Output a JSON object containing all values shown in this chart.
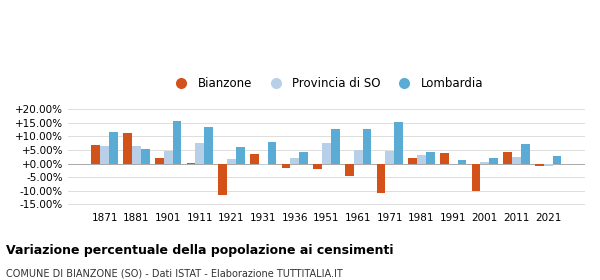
{
  "years": [
    1871,
    1881,
    1901,
    1911,
    1921,
    1931,
    1936,
    1951,
    1961,
    1971,
    1981,
    1991,
    2001,
    2011,
    2021
  ],
  "bianzone": [
    7.0,
    11.2,
    2.2,
    0.3,
    -11.5,
    3.5,
    -1.5,
    -2.0,
    -4.5,
    -11.0,
    2.0,
    4.0,
    -10.0,
    4.3,
    -1.0
  ],
  "provincia_so": [
    6.5,
    6.3,
    4.5,
    7.5,
    1.5,
    -0.5,
    2.0,
    7.5,
    5.0,
    4.5,
    3.0,
    0.0,
    0.5,
    2.5,
    -1.0
  ],
  "lombardia": [
    11.5,
    5.5,
    15.8,
    13.5,
    6.0,
    7.8,
    4.3,
    12.7,
    12.9,
    15.2,
    4.1,
    1.3,
    2.0,
    7.2,
    2.6
  ],
  "color_bianzone": "#d2521a",
  "color_provincia": "#b8cfe8",
  "color_lombardia": "#5bacd4",
  "title": "Variazione percentuale della popolazione ai censimenti",
  "subtitle": "COMUNE DI BIANZONE (SO) - Dati ISTAT - Elaborazione TUTTITALIA.IT",
  "yticks": [
    -15.0,
    -10.0,
    -5.0,
    0.0,
    5.0,
    10.0,
    15.0,
    20.0
  ],
  "ylim": [
    -16.5,
    22.5
  ],
  "background_color": "#ffffff",
  "grid_color": "#dddddd"
}
